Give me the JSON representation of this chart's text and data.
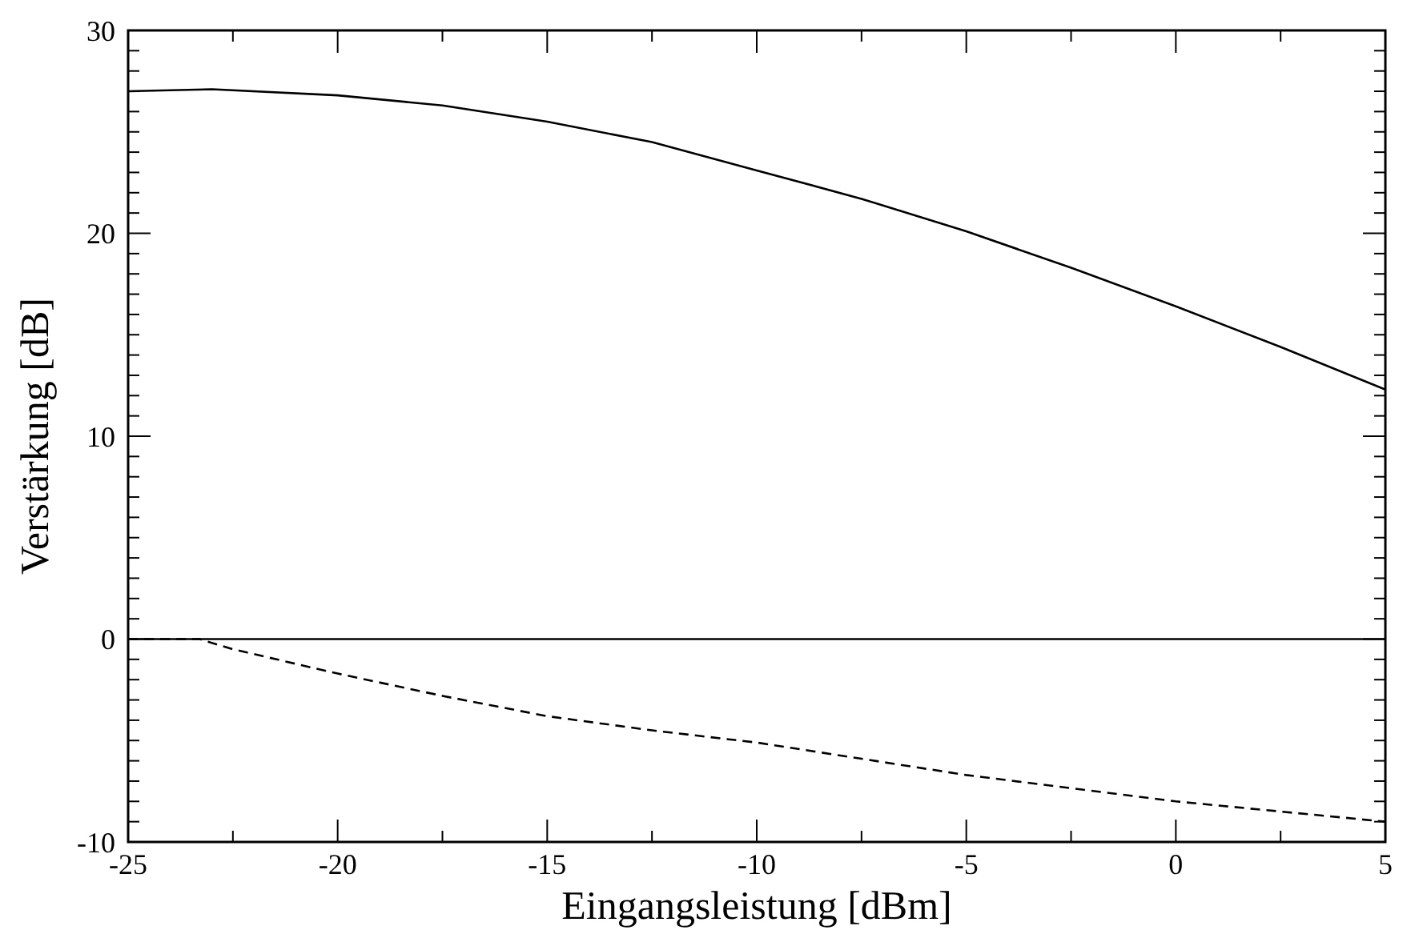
{
  "chart_data": {
    "type": "line",
    "xlabel": "Eingangsleistung [dBm]",
    "ylabel": "Verstärkung [dB]",
    "xlim": [
      -25,
      5
    ],
    "ylim": [
      -10,
      30
    ],
    "xticks": [
      -25,
      {
        "value": -22.5,
        "label": null
      },
      -20,
      {
        "value": -17.5,
        "label": null
      },
      -15,
      {
        "value": -12.5,
        "label": null
      },
      -10,
      {
        "value": -7.5,
        "label": null
      },
      -5,
      {
        "value": -2.5,
        "label": null
      },
      0,
      {
        "value": 2.5,
        "label": null
      },
      5
    ],
    "yticks": [
      -10,
      {
        "value": -9,
        "label": null
      },
      {
        "value": -8,
        "label": null
      },
      {
        "value": -7,
        "label": null
      },
      {
        "value": -6,
        "label": null
      },
      {
        "value": -5,
        "label": null
      },
      {
        "value": -4,
        "label": null
      },
      {
        "value": -3,
        "label": null
      },
      {
        "value": -2,
        "label": null
      },
      {
        "value": -1,
        "label": null
      },
      0,
      {
        "value": 1,
        "label": null
      },
      {
        "value": 2,
        "label": null
      },
      {
        "value": 3,
        "label": null
      },
      {
        "value": 4,
        "label": null
      },
      {
        "value": 5,
        "label": null
      },
      {
        "value": 6,
        "label": null
      },
      {
        "value": 7,
        "label": null
      },
      {
        "value": 8,
        "label": null
      },
      {
        "value": 9,
        "label": null
      },
      10,
      {
        "value": 11,
        "label": null
      },
      {
        "value": 12,
        "label": null
      },
      {
        "value": 13,
        "label": null
      },
      {
        "value": 14,
        "label": null
      },
      {
        "value": 15,
        "label": null
      },
      {
        "value": 16,
        "label": null
      },
      {
        "value": 17,
        "label": null
      },
      {
        "value": 18,
        "label": null
      },
      {
        "value": 19,
        "label": null
      },
      20,
      {
        "value": 21,
        "label": null
      },
      {
        "value": 22,
        "label": null
      },
      {
        "value": 23,
        "label": null
      },
      {
        "value": 24,
        "label": null
      },
      {
        "value": 25,
        "label": null
      },
      {
        "value": 26,
        "label": null
      },
      {
        "value": 27,
        "label": null
      },
      {
        "value": 28,
        "label": null
      },
      {
        "value": 29,
        "label": null
      },
      30
    ],
    "grid": false,
    "series": [
      {
        "color": "#000000",
        "line_style": "solid",
        "x": [
          -25,
          -23,
          -20,
          -17.5,
          -15,
          -12.5,
          -10,
          -7.5,
          -5,
          -2.5,
          0,
          2.5,
          5
        ],
        "values": [
          27.0,
          27.1,
          26.8,
          26.3,
          25.5,
          24.5,
          23.1,
          21.7,
          20.1,
          18.3,
          16.4,
          14.4,
          12.3
        ]
      },
      {
        "color": "#000000",
        "line_style": "solid",
        "x": [
          -25,
          5
        ],
        "values": [
          0,
          0
        ]
      },
      {
        "color": "#000000",
        "line_style": "dashed",
        "x": [
          -25,
          -23.3,
          -22.5,
          -20,
          -17.5,
          -15,
          -12.5,
          -10,
          -7.5,
          -5,
          -2.5,
          0,
          2.5,
          5
        ],
        "values": [
          0,
          0,
          -0.5,
          -1.7,
          -2.8,
          -3.8,
          -4.5,
          -5.1,
          -5.9,
          -6.7,
          -7.35,
          -8.0,
          -8.5,
          -9.0
        ]
      }
    ]
  }
}
